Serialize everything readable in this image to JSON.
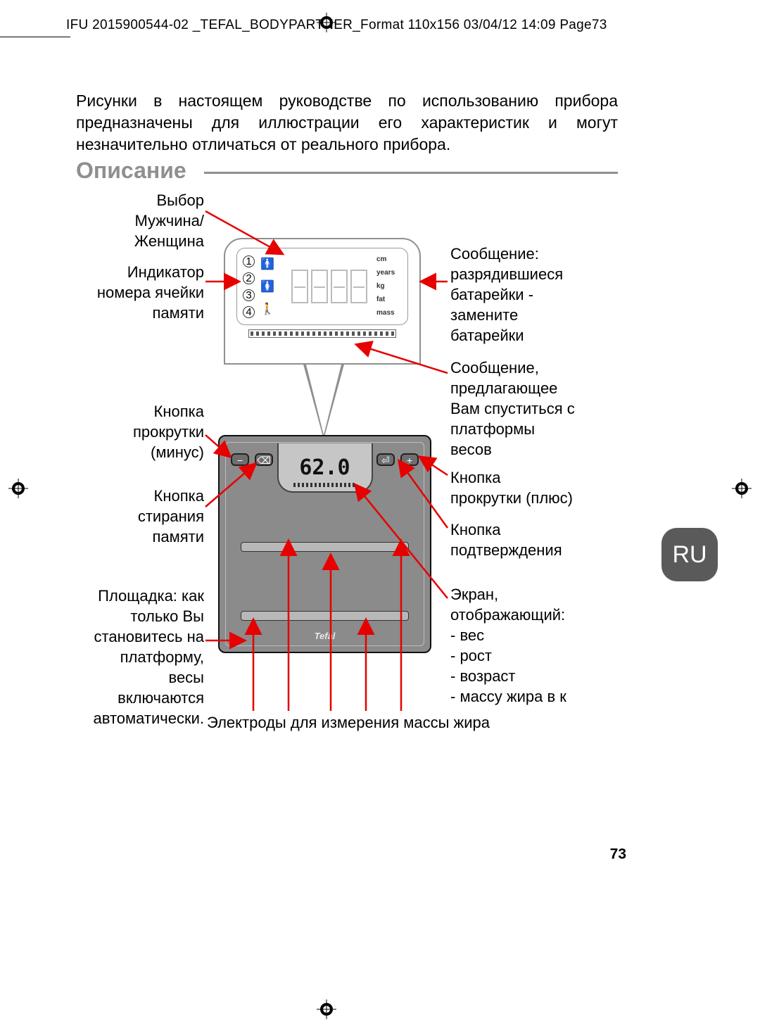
{
  "header": "IFU 2015900544-02 _TEFAL_BODYPARTNER_Format 110x156  03/04/12  14:09  Page73",
  "intro": "Рисунки в настоящем руководстве по использованию прибора предназначены для иллюстрации его характеристик и могут незначительно отличаться от реального прибора.",
  "section_title": "Описание",
  "lang": "RU",
  "page_num": "73",
  "labels": {
    "gender": "Выбор\nМужчина/\nЖенщина",
    "mem": "Индикатор\nномера ячейки\nпамяти",
    "minus": "Кнопка\nпрокрутки\n(минус)",
    "erase": "Кнопка\nстирания\nпамяти",
    "platform": "Площадка: как\nтолько Вы\nстановитесь на\nплатформу,\nвесы\nвключаются\nавтоматически.",
    "battery": "Сообщение:\nразрядившиеся\nбатарейки -\nзамените\nбатарейки",
    "stepoff": "Сообщение,\nпредлагающее\nВам спуститься с\nплатформы\nвесов",
    "plus": "Кнопка\nпрокрутки (плюс)",
    "confirm": "Кнопка\nподтверждения",
    "screen": "Экран,\nотображающий:\n - вес\n - рост\n- возраст\n - массу жира в к",
    "electrodes": "Электроды для измерения массы жира"
  },
  "units": [
    "cm",
    "years",
    "kg",
    "fat",
    "mass"
  ],
  "lcd_value": "62.0",
  "brand": "Tefal",
  "colors": {
    "arrow": "#e60000",
    "grey": "#8f8f8f",
    "scale_body": "#8b8b8b"
  }
}
